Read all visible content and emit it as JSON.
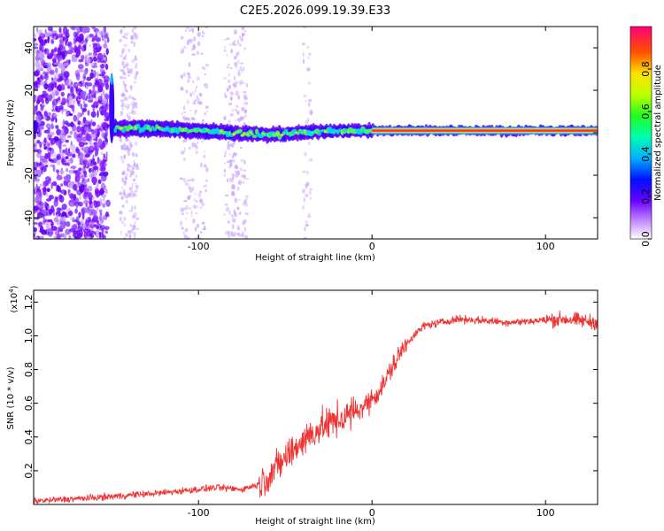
{
  "title": "C2E5.2026.099.19.39.E33",
  "chart_data": [
    {
      "type": "heatmap",
      "title": "C2E5.2026.099.19.39.E33",
      "xlabel": "Height of straight line (km)",
      "ylabel": "Frequency (Hz)",
      "xlim": [
        -195,
        130
      ],
      "ylim": [
        -50,
        50
      ],
      "xticks": [
        -100,
        0,
        100
      ],
      "yticks": [
        -40,
        -20,
        0,
        20,
        40
      ],
      "colorbar": {
        "label": "Normalized spectral amplitude",
        "range": [
          0.0,
          1.0
        ],
        "ticks": [
          0.0,
          0.2,
          0.4,
          0.6,
          0.8
        ]
      },
      "ridge": [
        {
          "x": -195,
          "y": 3
        },
        {
          "x": -150,
          "y": 2
        },
        {
          "x": -120,
          "y": 2
        },
        {
          "x": -100,
          "y": 1
        },
        {
          "x": -60,
          "y": -1
        },
        {
          "x": -40,
          "y": 0
        },
        {
          "x": -20,
          "y": 1
        },
        {
          "x": 0,
          "y": 1
        },
        {
          "x": 130,
          "y": 1
        }
      ],
      "spike": {
        "x": -150,
        "y_range": [
          -5,
          28
        ]
      }
    },
    {
      "type": "line",
      "xlabel": "Height of straight line (km)",
      "ylabel": "SNR (10 * v/v)",
      "y_multiplier": "(x10",
      "y_multiplier_exp": "4",
      "y_multiplier_close": ")",
      "xlim": [
        -195,
        130
      ],
      "ylim": [
        0,
        1.27
      ],
      "xticks": [
        -100,
        0,
        100
      ],
      "yticks": [
        0.2,
        0.4,
        0.6,
        0.8,
        1.0,
        1.2
      ],
      "series": [
        {
          "name": "SNR",
          "color": "#ee3333",
          "points": [
            {
              "x": -195,
              "y": 0.02
            },
            {
              "x": -160,
              "y": 0.04
            },
            {
              "x": -120,
              "y": 0.07
            },
            {
              "x": -90,
              "y": 0.1
            },
            {
              "x": -75,
              "y": 0.09
            },
            {
              "x": -65,
              "y": 0.12
            },
            {
              "x": -55,
              "y": 0.22
            },
            {
              "x": -45,
              "y": 0.33
            },
            {
              "x": -35,
              "y": 0.42
            },
            {
              "x": -25,
              "y": 0.48
            },
            {
              "x": -15,
              "y": 0.52
            },
            {
              "x": -5,
              "y": 0.58
            },
            {
              "x": 5,
              "y": 0.68
            },
            {
              "x": 12,
              "y": 0.82
            },
            {
              "x": 20,
              "y": 0.96
            },
            {
              "x": 30,
              "y": 1.06
            },
            {
              "x": 50,
              "y": 1.1
            },
            {
              "x": 80,
              "y": 1.08
            },
            {
              "x": 110,
              "y": 1.1
            },
            {
              "x": 130,
              "y": 1.08
            }
          ]
        }
      ]
    }
  ]
}
